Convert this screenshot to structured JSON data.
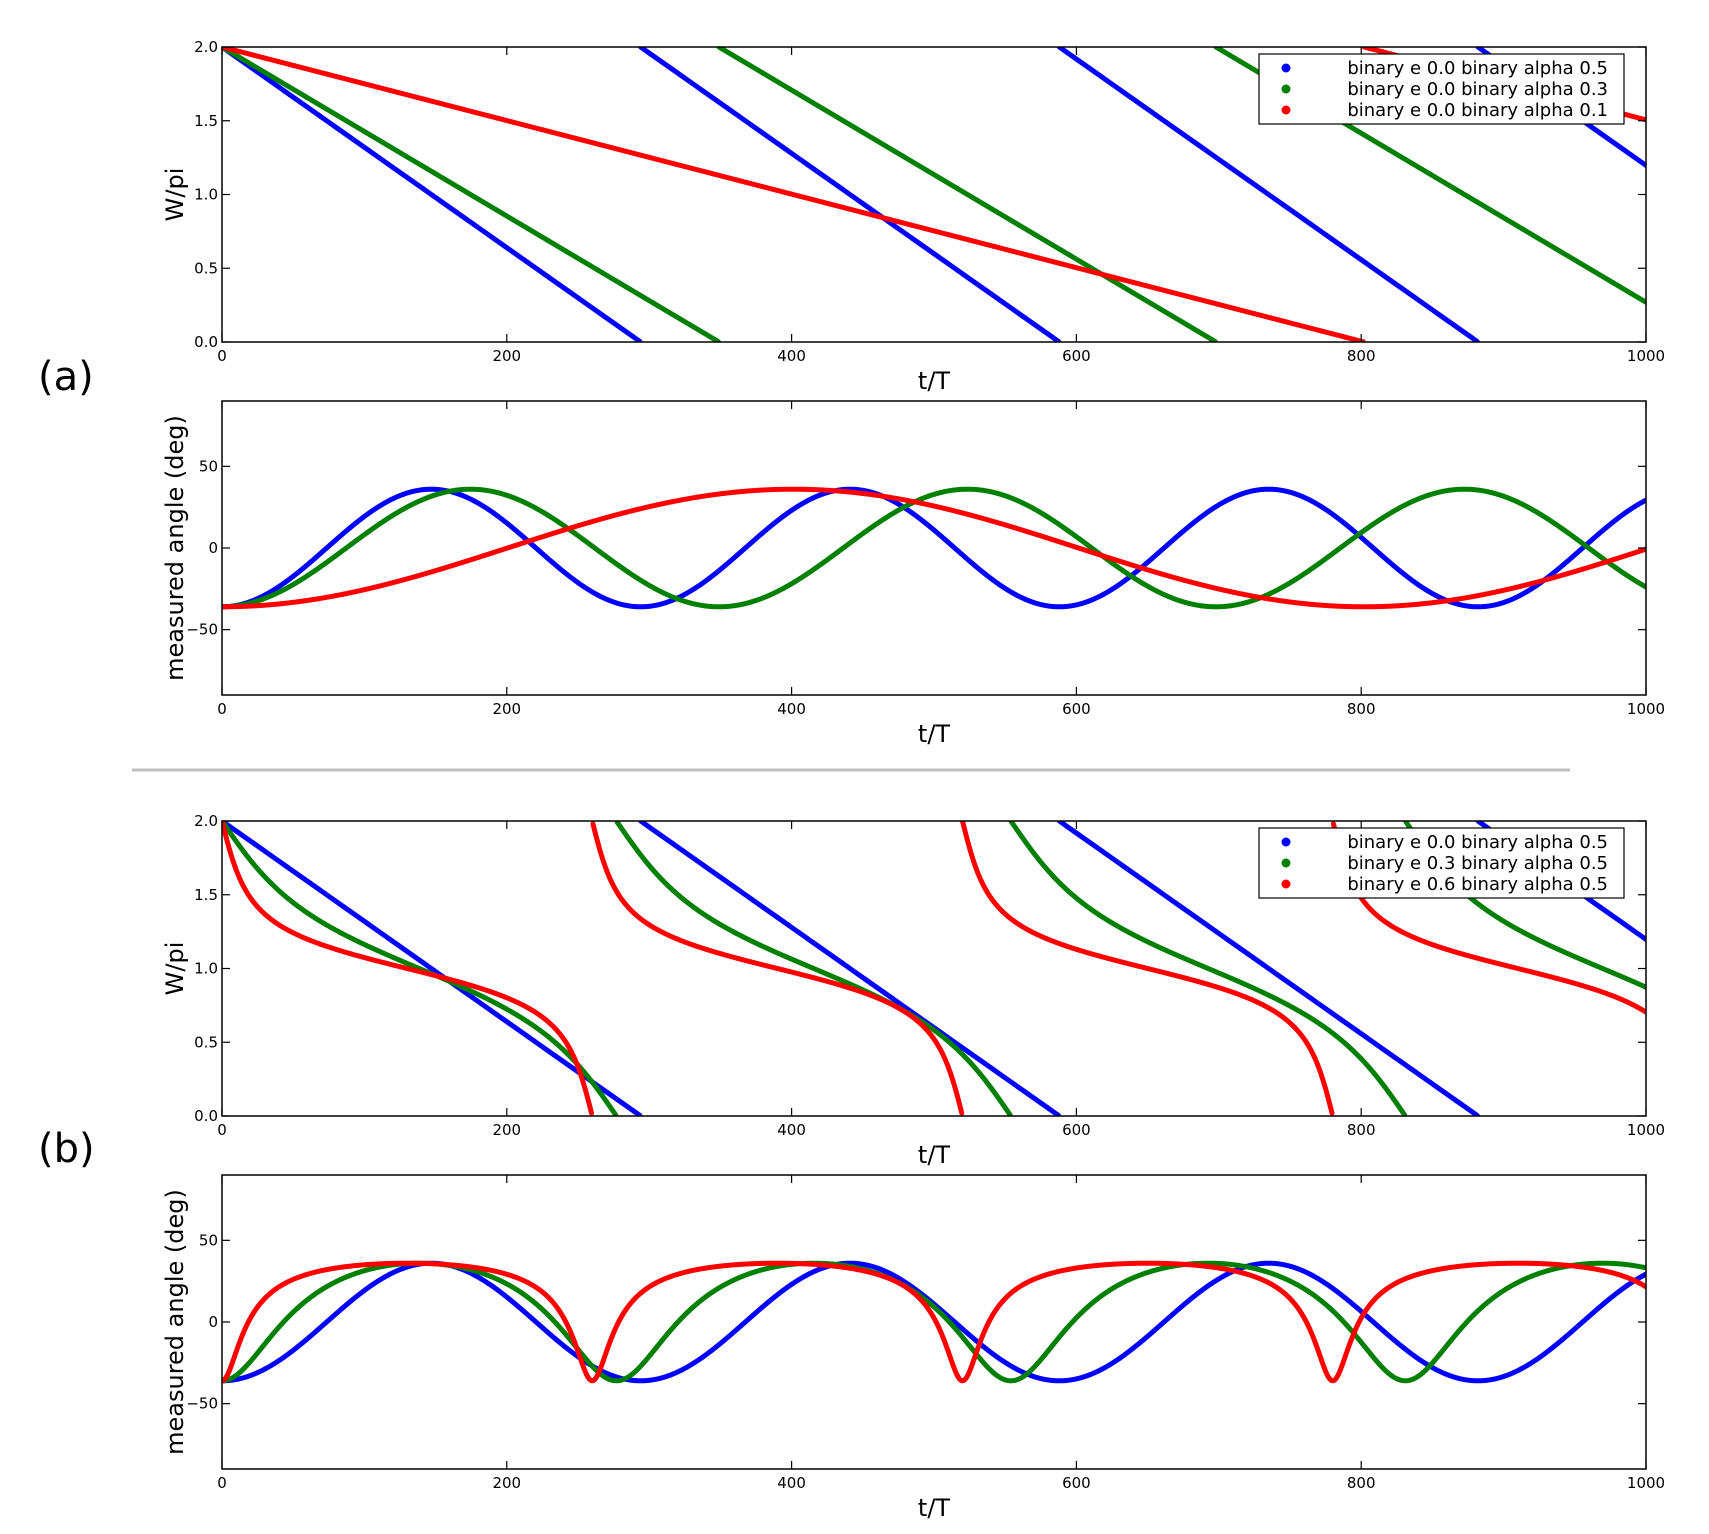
{
  "figure": {
    "panel_labels": [
      "(a)",
      "(b)"
    ],
    "colors": {
      "blue": "#0000ff",
      "green": "#008000",
      "red": "#ff0000",
      "divider": "#c0c0c0"
    }
  },
  "chart_data": [
    {
      "id": "a-top",
      "type": "scatter",
      "xlabel": "t/T",
      "ylabel": "W/pi",
      "xlim": [
        0,
        1000
      ],
      "ylim": [
        0.0,
        2.0
      ],
      "xticks": [
        "0",
        "200",
        "400",
        "600",
        "800",
        "1000"
      ],
      "yticks": [
        "0.0",
        "0.5",
        "1.0",
        "1.5",
        "2.0"
      ],
      "legend": {
        "placement": "top-right",
        "entries": [
          "binary e 0.0 binary alpha 0.5",
          "binary e 0.0 binary alpha 0.3",
          "binary e 0.0 binary alpha 0.1"
        ]
      },
      "series": [
        {
          "name": "binary e 0.0 binary alpha 0.5",
          "color": "#0000ff",
          "period": 294,
          "e": 0.0
        },
        {
          "name": "binary e 0.0 binary alpha 0.3",
          "color": "#008000",
          "period": 349,
          "e": 0.0
        },
        {
          "name": "binary e 0.0 binary alpha 0.1",
          "color": "#ff0000",
          "period": 802,
          "e": 0.0
        }
      ]
    },
    {
      "id": "a-bottom",
      "type": "scatter",
      "xlabel": "t/T",
      "ylabel": "measured angle (deg)",
      "xlim": [
        0,
        1000
      ],
      "ylim": [
        -90,
        90
      ],
      "xticks": [
        "0",
        "200",
        "400",
        "600",
        "800",
        "1000"
      ],
      "yticks": [
        "−50",
        "0",
        "50"
      ],
      "amplitude_deg": 36,
      "series": [
        {
          "name": "binary e 0.0 binary alpha 0.5",
          "color": "#0000ff",
          "period": 294,
          "e": 0.0
        },
        {
          "name": "binary e 0.0 binary alpha 0.3",
          "color": "#008000",
          "period": 349,
          "e": 0.0
        },
        {
          "name": "binary e 0.0 binary alpha 0.1",
          "color": "#ff0000",
          "period": 802,
          "e": 0.0
        }
      ]
    },
    {
      "id": "b-top",
      "type": "scatter",
      "xlabel": "t/T",
      "ylabel": "W/pi",
      "xlim": [
        0,
        1000
      ],
      "ylim": [
        0.0,
        2.0
      ],
      "xticks": [
        "0",
        "200",
        "400",
        "600",
        "800",
        "1000"
      ],
      "yticks": [
        "0.0",
        "0.5",
        "1.0",
        "1.5",
        "2.0"
      ],
      "legend": {
        "placement": "top-right",
        "entries": [
          "binary e 0.0 binary alpha 0.5",
          "binary e 0.3 binary alpha 0.5",
          "binary e 0.6 binary alpha 0.5"
        ]
      },
      "series": [
        {
          "name": "binary e 0.0 binary alpha 0.5",
          "color": "#0000ff",
          "period": 294,
          "e": 0.0
        },
        {
          "name": "binary e 0.3 binary alpha 0.5",
          "color": "#008000",
          "period": 277,
          "e": 0.3
        },
        {
          "name": "binary e 0.6 binary alpha 0.5",
          "color": "#ff0000",
          "period": 260,
          "e": 0.6
        }
      ]
    },
    {
      "id": "b-bottom",
      "type": "scatter",
      "xlabel": "t/T",
      "ylabel": "measured angle (deg)",
      "xlim": [
        0,
        1000
      ],
      "ylim": [
        -90,
        90
      ],
      "xticks": [
        "0",
        "200",
        "400",
        "600",
        "800",
        "1000"
      ],
      "yticks": [
        "−50",
        "0",
        "50"
      ],
      "amplitude_deg": 36,
      "series": [
        {
          "name": "binary e 0.0 binary alpha 0.5",
          "color": "#0000ff",
          "period": 294,
          "e": 0.0
        },
        {
          "name": "binary e 0.3 binary alpha 0.5",
          "color": "#008000",
          "period": 277,
          "e": 0.3
        },
        {
          "name": "binary e 0.6 binary alpha 0.5",
          "color": "#ff0000",
          "period": 260,
          "e": 0.6
        }
      ]
    }
  ]
}
